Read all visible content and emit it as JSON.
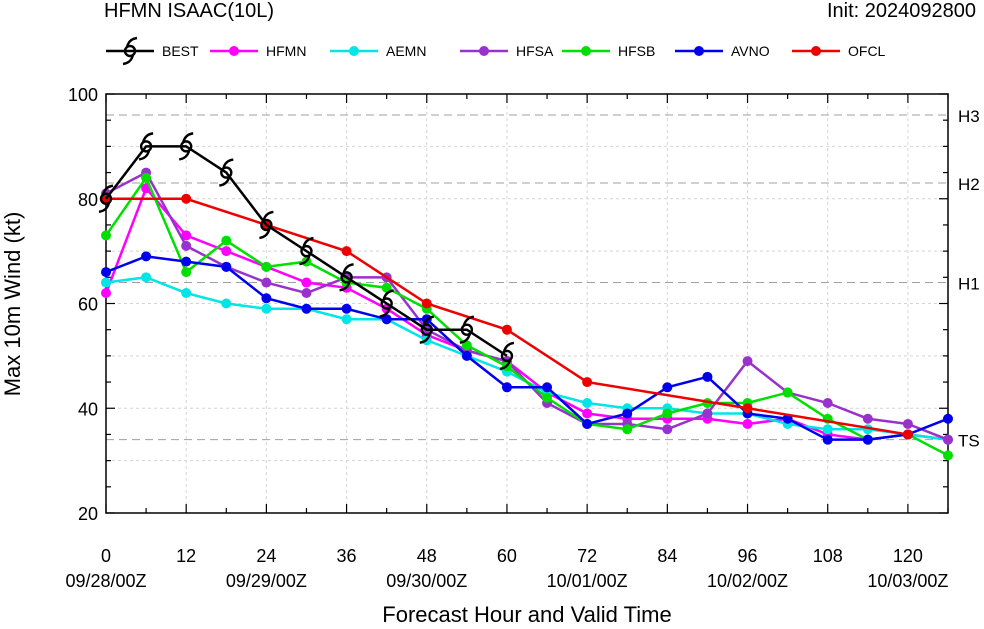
{
  "header": {
    "title": "HFMN ISAAC(10L)",
    "init": "Init: 2024092800"
  },
  "chart_data": {
    "type": "line",
    "title": "HFMN ISAAC(10L)",
    "xlabel": "Forecast Hour and Valid Time",
    "ylabel": "Max 10m Wind (kt)",
    "xlim": [
      0,
      126
    ],
    "ylim": [
      20,
      100
    ],
    "x_ticks": [
      0,
      12,
      24,
      36,
      48,
      60,
      72,
      84,
      96,
      108,
      120
    ],
    "x_tick_labels": [
      "0",
      "12",
      "24",
      "36",
      "48",
      "60",
      "72",
      "84",
      "96",
      "108",
      "120"
    ],
    "date_labels": [
      {
        "x": 0,
        "label": "09/28/00Z"
      },
      {
        "x": 24,
        "label": "09/29/00Z"
      },
      {
        "x": 48,
        "label": "09/30/00Z"
      },
      {
        "x": 72,
        "label": "10/01/00Z"
      },
      {
        "x": 96,
        "label": "10/02/00Z"
      },
      {
        "x": 120,
        "label": "10/03/00Z"
      }
    ],
    "y_ticks": [
      20,
      40,
      60,
      80,
      100
    ],
    "y_tick_labels": [
      "20",
      "40",
      "60",
      "80",
      "100"
    ],
    "thresholds": [
      {
        "label": "H3",
        "value": 96
      },
      {
        "label": "H2",
        "value": 83
      },
      {
        "label": "H1",
        "value": 64
      },
      {
        "label": "TS",
        "value": 34
      }
    ],
    "grid": true,
    "legend_position": "top",
    "series": [
      {
        "name": "BEST",
        "color": "#000000",
        "marker": "hurricane-symbol",
        "x": [
          0,
          6,
          12,
          18,
          24,
          30,
          36,
          42,
          48,
          54,
          60
        ],
        "values": [
          80,
          90,
          90,
          85,
          75,
          70,
          65,
          60,
          55,
          55,
          50
        ]
      },
      {
        "name": "HFMN",
        "color": "#ff00ff",
        "marker": "circle",
        "x": [
          0,
          6,
          12,
          18,
          24,
          30,
          36,
          42,
          48,
          54,
          60,
          66,
          72,
          78,
          84,
          90,
          96,
          102,
          108,
          114,
          120,
          126
        ],
        "values": [
          62,
          82,
          73,
          70,
          67,
          64,
          63,
          59,
          54,
          51,
          49,
          43,
          39,
          38,
          38,
          38,
          37,
          38,
          35,
          34,
          35,
          34
        ]
      },
      {
        "name": "AEMN",
        "color": "#00e5e5",
        "marker": "circle",
        "x": [
          0,
          6,
          12,
          18,
          24,
          30,
          36,
          42,
          48,
          54,
          60,
          66,
          72,
          78,
          84,
          90,
          96,
          102,
          108,
          114,
          120,
          126
        ],
        "values": [
          64,
          65,
          62,
          60,
          59,
          59,
          57,
          57,
          53,
          50,
          47,
          43,
          41,
          40,
          40,
          39,
          39,
          37,
          36,
          36,
          35,
          34
        ]
      },
      {
        "name": "HFSA",
        "color": "#9932cc",
        "marker": "circle",
        "x": [
          0,
          6,
          12,
          18,
          24,
          30,
          36,
          42,
          48,
          54,
          60,
          66,
          72,
          78,
          84,
          90,
          96,
          102,
          108,
          114,
          120,
          126
        ],
        "values": [
          81,
          85,
          71,
          67,
          64,
          62,
          65,
          65,
          55,
          51,
          49,
          41,
          37,
          37,
          36,
          39,
          49,
          43,
          41,
          38,
          37,
          34
        ]
      },
      {
        "name": "HFSB",
        "color": "#00e000",
        "marker": "circle",
        "x": [
          0,
          6,
          12,
          18,
          24,
          30,
          36,
          42,
          48,
          54,
          60,
          66,
          72,
          78,
          84,
          90,
          96,
          102,
          108,
          114,
          120,
          126
        ],
        "values": [
          73,
          84,
          66,
          72,
          67,
          68,
          64,
          63,
          59,
          52,
          48,
          42,
          37,
          36,
          39,
          41,
          41,
          43,
          38,
          34,
          35,
          31
        ]
      },
      {
        "name": "AVNO",
        "color": "#0000ee",
        "marker": "circle",
        "x": [
          0,
          6,
          12,
          18,
          24,
          30,
          36,
          42,
          48,
          54,
          60,
          66,
          72,
          78,
          84,
          90,
          96,
          102,
          108,
          114,
          120,
          126
        ],
        "values": [
          66,
          69,
          68,
          67,
          61,
          59,
          59,
          57,
          57,
          50,
          44,
          44,
          37,
          39,
          44,
          46,
          39,
          38,
          34,
          34,
          35,
          38
        ]
      },
      {
        "name": "OFCL",
        "color": "#ee0000",
        "marker": "circle",
        "x": [
          0,
          12,
          24,
          36,
          48,
          60,
          72,
          96,
          120
        ],
        "values": [
          80,
          80,
          75,
          70,
          60,
          55,
          45,
          40,
          35
        ]
      }
    ]
  }
}
